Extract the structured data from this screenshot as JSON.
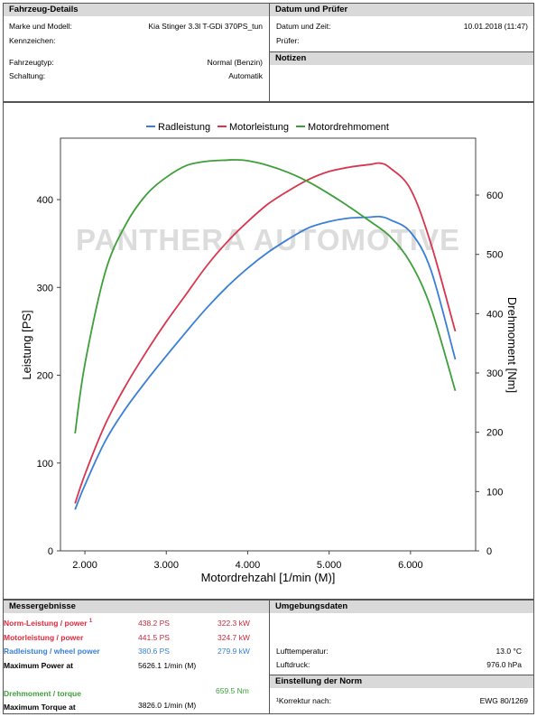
{
  "vehicle": {
    "header": "Fahrzeug-Details",
    "model_label": "Marke und Modell:",
    "model_value": "Kia Stinger 3.3l T-GDi 370PS_tun",
    "plate_label": "Kennzeichen:",
    "type_label": "Fahrzeugtyp:",
    "type_value": "Normal (Benzin)",
    "gear_label": "Schaltung:",
    "gear_value": "Automatik"
  },
  "date": {
    "header": "Datum und Prüfer",
    "date_label": "Datum und Zeit:",
    "date_value": "10.01.2018 (11:47)",
    "tester_label": "Prüfer:"
  },
  "notes": {
    "header": "Notizen"
  },
  "watermark": "PANTHERA AUTOMOTIVE",
  "chart_data": {
    "type": "line",
    "title": "",
    "xlabel": "Motordrehzahl [1/min (M)]",
    "ylabel": "Leistung [PS]",
    "y2label": "Drehmoment [Nm]",
    "xlim": [
      1700,
      6800
    ],
    "ylim": [
      0,
      470
    ],
    "y2lim": [
      0,
      696
    ],
    "x_ticks": [
      2000,
      3000,
      4000,
      5000,
      6000
    ],
    "x_tick_labels": [
      "2.000",
      "3.000",
      "4.000",
      "5.000",
      "6.000"
    ],
    "y_ticks": [
      0,
      100,
      200,
      300,
      400
    ],
    "y_tick_labels": [
      "0",
      "100",
      "200",
      "300",
      "400"
    ],
    "y2_ticks": [
      0,
      100,
      200,
      300,
      400,
      500,
      600
    ],
    "y2_tick_labels": [
      "0",
      "100",
      "200",
      "300",
      "400",
      "500",
      "600"
    ],
    "legend_position": "top",
    "series": [
      {
        "name": "Radleistung",
        "axis": "left",
        "color": "#3a7fd5",
        "x": [
          1880,
          2000,
          2250,
          2500,
          2750,
          3000,
          3250,
          3500,
          3750,
          4000,
          4250,
          4500,
          4750,
          5000,
          5250,
          5500,
          5625,
          5750,
          6000,
          6250,
          6550
        ],
        "y": [
          47,
          75,
          125,
          162,
          193,
          222,
          250,
          277,
          301,
          322,
          340,
          355,
          368,
          375,
          379,
          380,
          380.6,
          377,
          363,
          320,
          218
        ]
      },
      {
        "name": "Motorleistung",
        "axis": "left",
        "color": "#d8354f",
        "x": [
          1880,
          2000,
          2250,
          2500,
          2750,
          3000,
          3250,
          3500,
          3750,
          4000,
          4250,
          4500,
          4750,
          5000,
          5250,
          5500,
          5626,
          5750,
          6000,
          6250,
          6550
        ],
        "y": [
          54,
          87,
          144,
          188,
          226,
          261,
          293,
          325,
          352,
          375,
          395,
          410,
          423,
          432,
          437,
          440,
          441.5,
          436,
          412,
          350,
          250
        ]
      },
      {
        "name": "Motordrehmoment",
        "axis": "right",
        "color": "#3e9f3a",
        "x": [
          1880,
          2000,
          2250,
          2500,
          2750,
          3000,
          3250,
          3500,
          3750,
          3826,
          4000,
          4250,
          4500,
          4750,
          5000,
          5250,
          5500,
          5750,
          6000,
          6250,
          6550
        ],
        "y": [
          198,
          315,
          470,
          550,
          600,
          630,
          650,
          657,
          659,
          659.5,
          658,
          650,
          638,
          622,
          602,
          580,
          556,
          530,
          486,
          410,
          270
        ]
      }
    ]
  },
  "results": {
    "header": "Messergebnisse",
    "norm_label": "Norm-Leistung / power ",
    "norm_sup": "1",
    "norm_ps": "438.2 PS",
    "norm_kw": "322.3 kW",
    "motor_label": "Motorleistung / power",
    "motor_ps": "441.5 PS",
    "motor_kw": "324.7 kW",
    "wheel_label": "Radleistung / wheel power",
    "wheel_ps": "380.6 PS",
    "wheel_kw": "279.9 kW",
    "maxpower_label": "Maximum Power at",
    "maxpower_value": "5626.1 1/min (M)",
    "torque_label": "Drehmoment / torque",
    "torque_value": "659.5 Nm",
    "maxtorque_label": "Maximum Torque at",
    "maxtorque_value": "3826.0 1/min (M)"
  },
  "ambient": {
    "header": "Umgebungsdaten",
    "temp_label": "Lufttemperatur:",
    "temp_value": "13.0 °C",
    "press_label": "Luftdruck:",
    "press_value": "976.0 hPa"
  },
  "norm": {
    "header": "Einstellung der Norm",
    "corr_label": "¹Korrektur nach:",
    "corr_value": "EWG 80/1269"
  },
  "colors": {
    "header_bg": "#d9d9d9",
    "norm_red": "#e0283c",
    "wheel_blue": "#3a7fd5",
    "torque_green": "#3e9f3a",
    "value_red": "#c8283c"
  }
}
